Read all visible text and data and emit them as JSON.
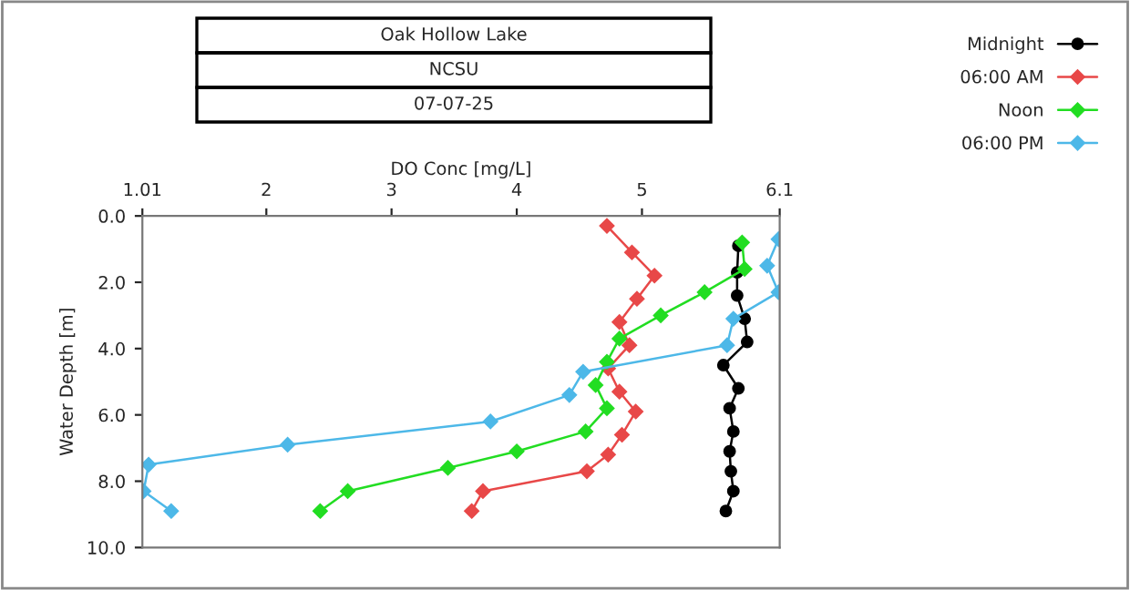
{
  "chart_data": {
    "type": "line",
    "title": "Oak Hollow Lake",
    "subtitle": "NCSU",
    "annotations": [
      "07-07-25"
    ],
    "xlabel": "DO Conc [mg/L]",
    "ylabel": "Water Depth [m]",
    "xlim": [
      1.01,
      6.1
    ],
    "xticks": [
      1.01,
      2,
      3,
      4,
      5,
      6.1
    ],
    "ylim": [
      10,
      0
    ],
    "yticks": [
      {
        "value": 0,
        "label": "0.0"
      },
      {
        "value": 2,
        "label": "2.0"
      },
      {
        "value": 4,
        "label": "4.0"
      },
      {
        "value": 6,
        "label": "6.0"
      },
      {
        "value": 8,
        "label": "8.0"
      },
      {
        "value": 10,
        "label": "10.0"
      }
    ],
    "marker": "diamond",
    "line_style": "solid",
    "grid": false,
    "legend": "top right",
    "series": [
      {
        "name": "Midnight",
        "color": "#000000",
        "marker": "circle",
        "values": [
          0.9,
          1.7,
          2.4,
          3.1,
          3.8,
          4.5,
          5.2,
          5.8,
          6.5,
          7.1,
          7.7,
          8.3,
          8.9
        ],
        "x": [
          5.77,
          5.76,
          5.76,
          5.82,
          5.84,
          5.65,
          5.77,
          5.7,
          5.73,
          5.7,
          5.71,
          5.73,
          5.67
        ]
      },
      {
        "name": "06:00 AM",
        "color": "#e84848",
        "values": [
          0.3,
          1.1,
          1.8,
          2.5,
          3.2,
          3.9,
          4.6,
          5.3,
          5.9,
          6.6,
          7.2,
          7.7,
          8.3,
          8.9
        ],
        "x": [
          4.72,
          4.92,
          5.1,
          4.96,
          4.82,
          4.9,
          4.73,
          4.82,
          4.95,
          4.84,
          4.73,
          4.56,
          3.73,
          3.64
        ]
      },
      {
        "name": "Noon",
        "color": "#22dd22",
        "values": [
          0.8,
          1.6,
          2.3,
          3.0,
          3.7,
          4.4,
          5.1,
          5.8,
          6.5,
          7.1,
          7.6,
          8.3,
          8.9
        ],
        "x": [
          5.8,
          5.82,
          5.5,
          5.15,
          4.82,
          4.72,
          4.63,
          4.72,
          4.55,
          4.0,
          3.45,
          2.65,
          2.43
        ]
      },
      {
        "name": "06:00 PM",
        "color": "#4db8e8",
        "values": [
          0.7,
          1.5,
          2.3,
          3.1,
          3.9,
          4.7,
          5.4,
          6.2,
          6.9,
          7.5,
          8.3,
          8.9
        ],
        "x": [
          6.09,
          6.0,
          6.09,
          5.73,
          5.68,
          4.53,
          4.42,
          3.79,
          2.17,
          1.06,
          1.02,
          1.24
        ]
      }
    ]
  }
}
